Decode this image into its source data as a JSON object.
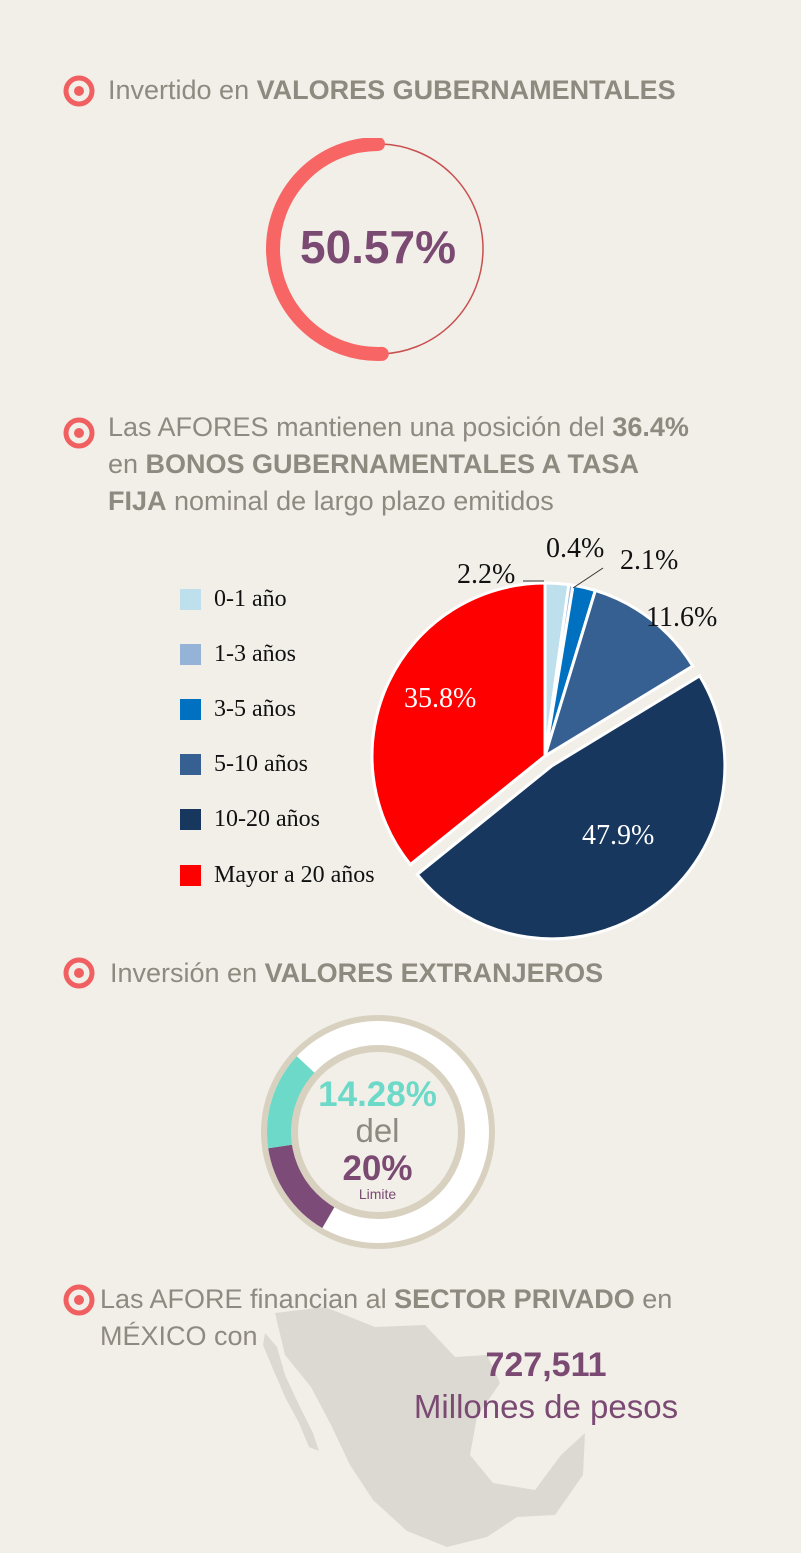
{
  "section1": {
    "heading_prefix": "Invertido en ",
    "heading_bold": "VALORES GUBERNAMENTALES",
    "value_label": "50.57%",
    "value": 50.57
  },
  "section2": {
    "line1_prefix": "Las AFORES mantienen una posición del ",
    "line1_bold": "36.4%",
    "line2_prefix": "en ",
    "line2_bold": "BONOS GUBERNAMENTALES A TASA",
    "line3_bold": "FIJA",
    "line3_suffix": " nominal de largo plazo emitidos"
  },
  "chart_data": {
    "type": "pie",
    "title": "",
    "categories": [
      "0-1 año",
      "1-3 años",
      "3-5 años",
      "5-10 años",
      "10-20 años",
      "Mayor a 20 años"
    ],
    "values": [
      2.2,
      0.4,
      2.1,
      11.6,
      47.9,
      35.8
    ],
    "value_labels": [
      "2.2%",
      "0.4%",
      "2.1%",
      "11.6%",
      "47.9%",
      "35.8%"
    ],
    "colors": [
      "#bde0ec",
      "#95b3d7",
      "#0070c0",
      "#366092",
      "#17375e",
      "#ff0000"
    ],
    "exploded": [
      false,
      false,
      false,
      false,
      true,
      false
    ],
    "legend_position": "left"
  },
  "section3": {
    "heading_prefix": "Inversión en ",
    "heading_bold": "VALORES EXTRANJEROS",
    "value_label": "14.28%",
    "middle_label": "del",
    "limit_label": "20%",
    "limit_caption": "Limite",
    "value": 14.28,
    "limit": 20,
    "colors": {
      "value": "#6dd9c8",
      "limit": "#7d4b77",
      "ring": "#d8d1c0"
    }
  },
  "section4": {
    "line1_prefix": "Las AFORE financian al ",
    "line1_bold": "SECTOR PRIVADO",
    "line1_suffix": " en",
    "line2": "MÉXICO con",
    "amount": "727,511",
    "amount_caption": "Millones de pesos"
  },
  "colors": {
    "accent": "#f06060",
    "purple": "#7a4a72",
    "heading": "#8d8a80",
    "background": "#f2efe9"
  }
}
